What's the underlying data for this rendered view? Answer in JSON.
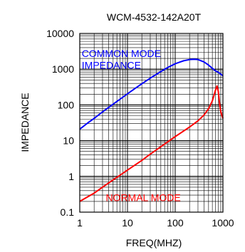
{
  "chart_data": {
    "type": "line",
    "title": "WCM-4532-142A20T",
    "xlabel": "FREQ(MHZ)",
    "ylabel": "IMPEDANCE",
    "xscale": "log",
    "yscale": "log",
    "xlim": [
      1,
      1000
    ],
    "ylim": [
      0.1,
      10000
    ],
    "x_tick_labels": [
      "1",
      "10",
      "100",
      "1000"
    ],
    "y_tick_labels": [
      "0.1",
      "1",
      "10",
      "100",
      "1000",
      "10000"
    ],
    "grid": true,
    "series": [
      {
        "name": "COMMON MODE IMPEDANCE",
        "label_lines": [
          "COMMON MODE",
          "IMPEDANCE"
        ],
        "color": "#0000ff",
        "x": [
          1,
          1.5,
          2,
          3,
          5,
          7,
          10,
          15,
          20,
          30,
          50,
          70,
          100,
          150,
          200,
          250,
          300,
          400,
          500,
          600,
          700,
          800,
          1000
        ],
        "y": [
          21,
          32,
          42,
          64,
          105,
          145,
          205,
          300,
          390,
          560,
          860,
          1120,
          1420,
          1720,
          1860,
          1900,
          1860,
          1600,
          1300,
          1060,
          900,
          820,
          660
        ]
      },
      {
        "name": "NORMAL MODE",
        "label_lines": [
          "NORMAL MODE"
        ],
        "color": "#ff0000",
        "x": [
          1,
          2,
          3,
          5,
          10,
          20,
          30,
          50,
          100,
          200,
          300,
          400,
          500,
          600,
          700,
          750,
          800,
          850,
          900,
          1000
        ],
        "y": [
          0.2,
          0.34,
          0.5,
          0.8,
          1.5,
          2.8,
          4.2,
          6.8,
          13,
          24,
          36,
          52,
          78,
          130,
          260,
          340,
          240,
          110,
          65,
          42
        ]
      }
    ]
  }
}
